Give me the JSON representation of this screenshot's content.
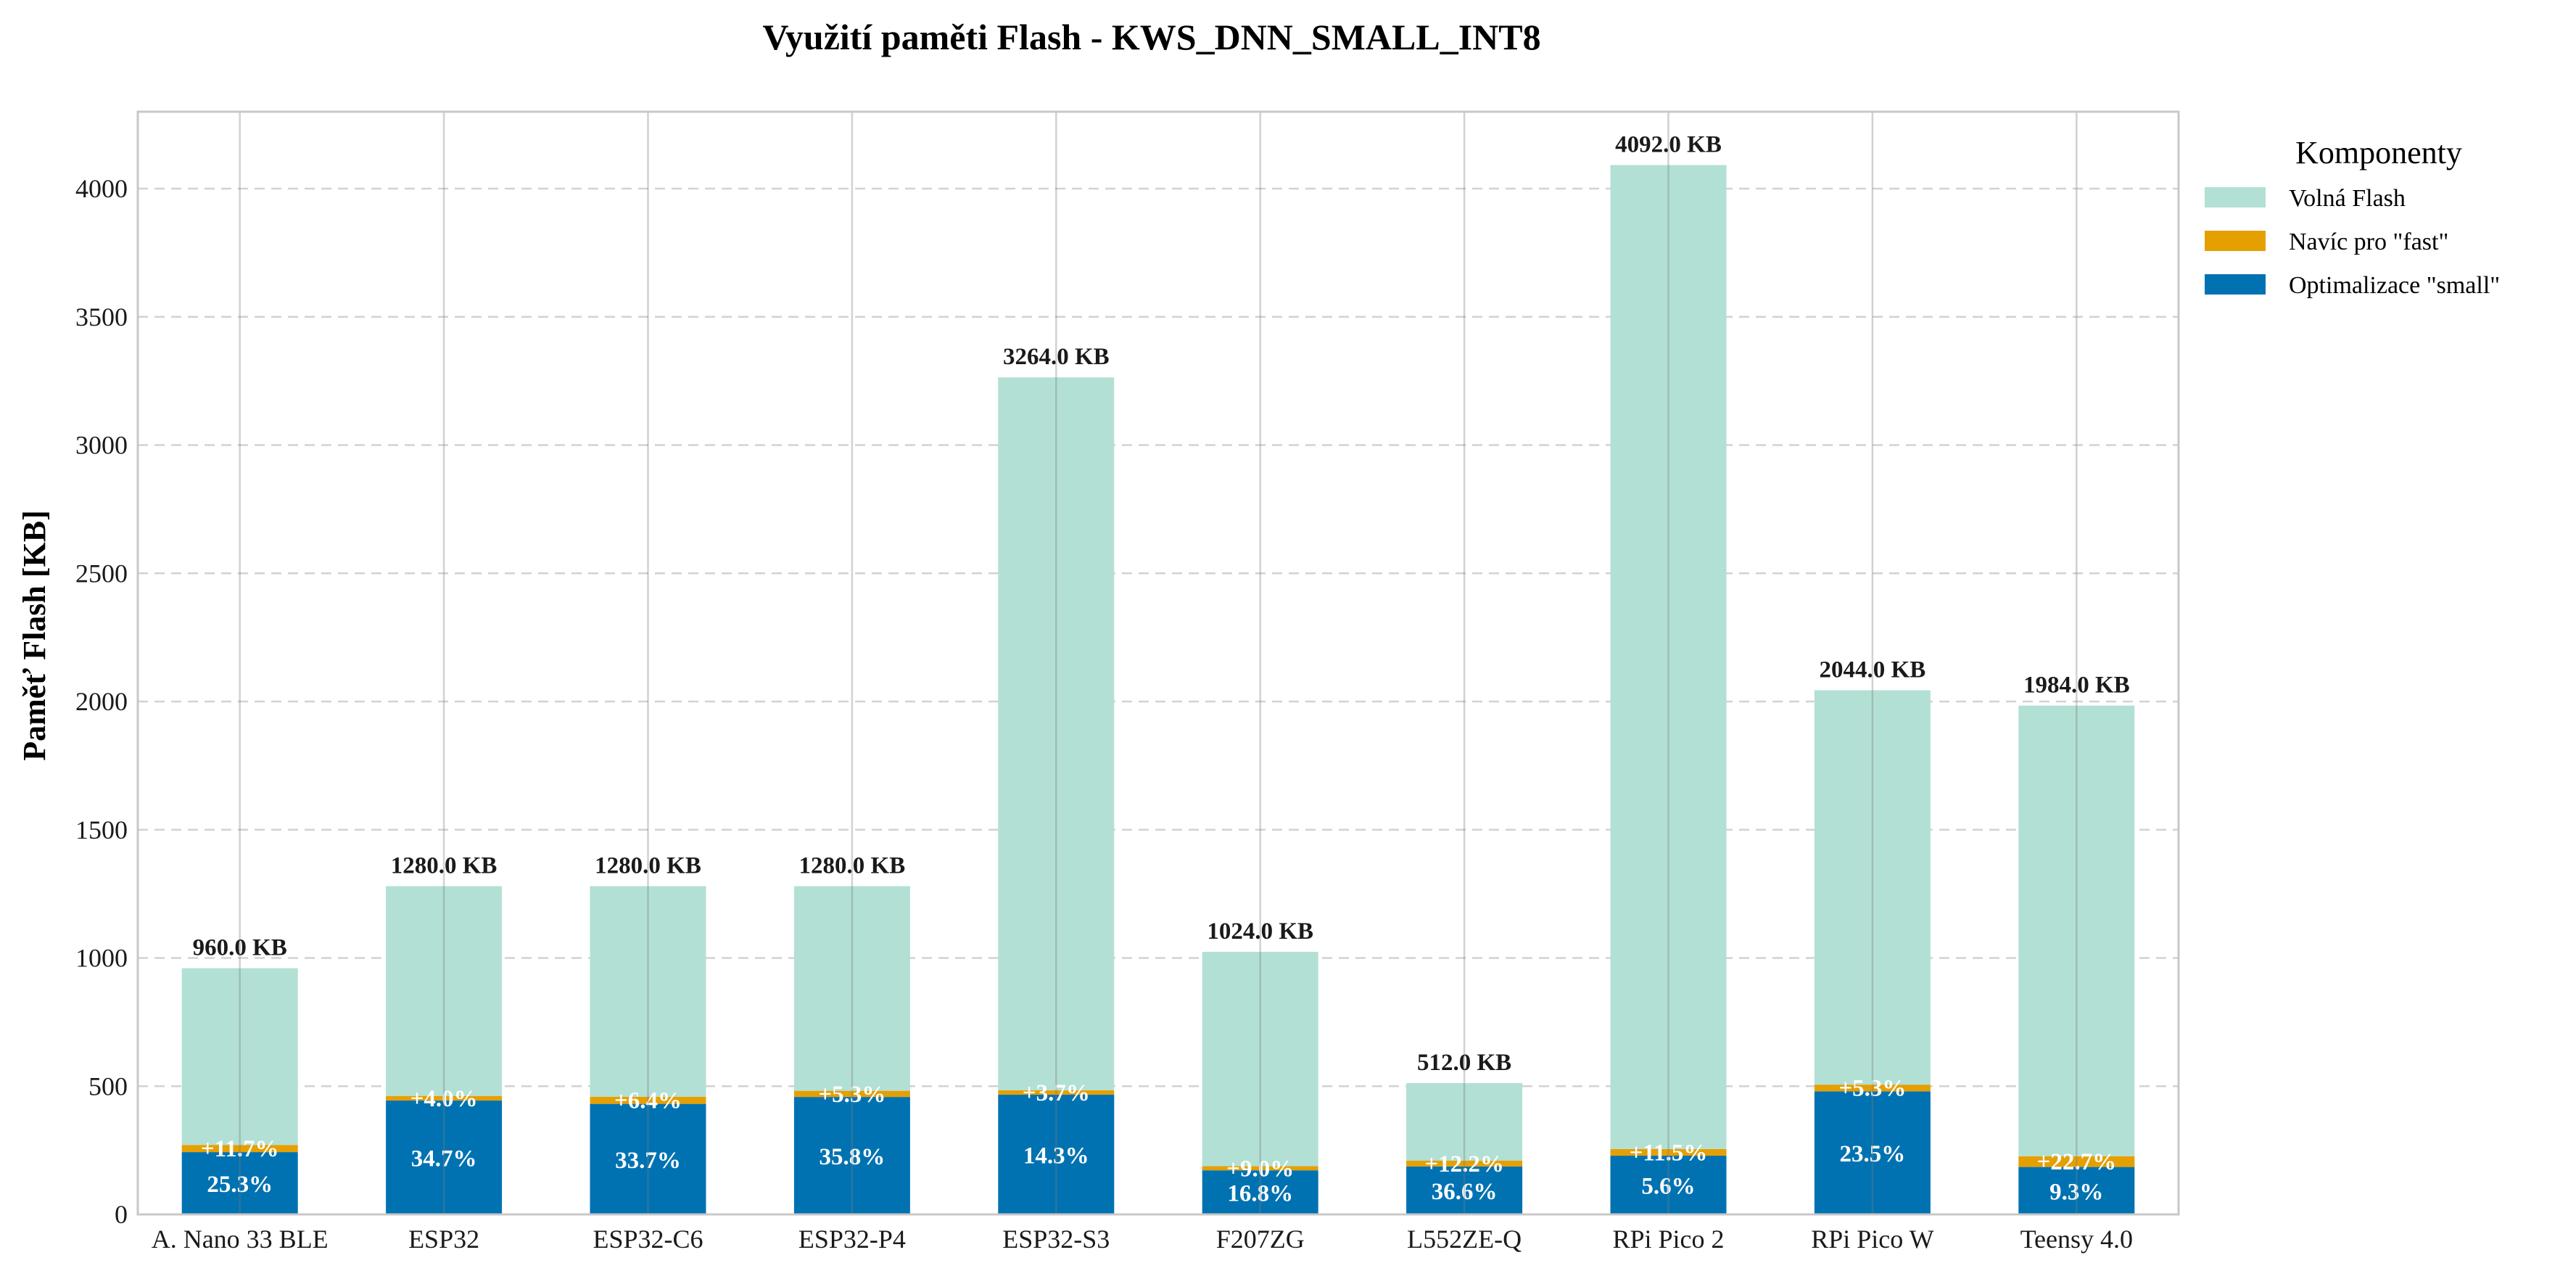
{
  "chart_data": {
    "type": "bar",
    "stacked": true,
    "title": "Využití paměti Flash - KWS_DNN_SMALL_INT8",
    "ylabel": "Paměť Flash [KB]",
    "xlabel": "",
    "ylim": [
      0,
      4300
    ],
    "yticks": [
      0,
      500,
      1000,
      1500,
      2000,
      2500,
      3000,
      3500,
      4000
    ],
    "grid": true,
    "legend_position": "top-right (outside plot)",
    "legend_title": "Komponenty",
    "categories": [
      "A. Nano 33 BLE",
      "ESP32",
      "ESP32-C6",
      "ESP32-P4",
      "ESP32-S3",
      "F207ZG",
      "L552ZE-Q",
      "RPi Pico 2",
      "RPi Pico W",
      "Teensy 4.0"
    ],
    "series": [
      {
        "name": "Optimalizace \"small\"",
        "color": "#0072b2",
        "values": [
          243,
          444,
          431,
          458,
          467,
          172,
          187,
          229,
          480,
          185
        ]
      },
      {
        "name": "Navíc pro \"fast\"",
        "color": "#e69f00",
        "values": [
          28,
          18,
          28,
          24,
          17,
          16,
          23,
          26,
          26,
          42
        ]
      },
      {
        "name": "Volná Flash",
        "color": "#b2e0d4",
        "values": [
          689,
          818,
          821,
          798,
          2780,
          836,
          302,
          3837,
          1538,
          1757
        ]
      }
    ],
    "totals": [
      960,
      1280,
      1280,
      1280,
      3264,
      1024,
      512,
      4092,
      2044,
      1984
    ],
    "total_labels": [
      "960.0 KB",
      "1280.0 KB",
      "1280.0 KB",
      "1280.0 KB",
      "3264.0 KB",
      "1024.0 KB",
      "512.0 KB",
      "4092.0 KB",
      "2044.0 KB",
      "1984.0 KB"
    ],
    "small_pct_labels": [
      "25.3%",
      "34.7%",
      "33.7%",
      "35.8%",
      "14.3%",
      "16.8%",
      "36.6%",
      "5.6%",
      "23.5%",
      "9.3%"
    ],
    "fast_pct_labels": [
      "+11.7%",
      "+4.0%",
      "+6.4%",
      "+5.3%",
      "+3.7%",
      "+9.0%",
      "+12.2%",
      "+11.5%",
      "+5.3%",
      "+22.7%"
    ]
  }
}
